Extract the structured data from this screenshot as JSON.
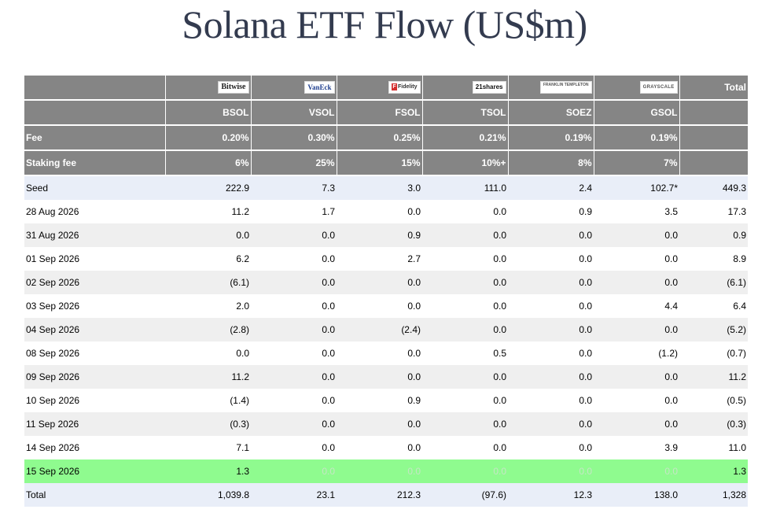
{
  "title": "Solana ETF Flow (US$m)",
  "logos": [
    {
      "icon": "bitwise-logo",
      "text": "Bitwise"
    },
    {
      "icon": "vaneck-logo",
      "text": "VanEck"
    },
    {
      "icon": "fidelity-logo",
      "text": "Fidelity"
    },
    {
      "icon": "21shares-logo",
      "text": "21shares"
    },
    {
      "icon": "franklin-templeton-logo",
      "text": "FRANKLIN TEMPLETON"
    },
    {
      "icon": "grayscale-logo",
      "text": "GRAYSCALE"
    }
  ],
  "header": {
    "total_label": "Total",
    "tickers": [
      "BSOL",
      "VSOL",
      "FSOL",
      "TSOL",
      "SOEZ",
      "GSOL"
    ],
    "fee": {
      "label": "Fee",
      "values": [
        "0.20%",
        "0.30%",
        "0.25%",
        "0.21%",
        "0.19%",
        "0.19%"
      ]
    },
    "staking_fee": {
      "label": "Staking fee",
      "values": [
        "6%",
        "25%",
        "15%",
        "10%+",
        "8%",
        "7%"
      ]
    }
  },
  "rows": [
    {
      "label": "Seed",
      "values": [
        "222.9",
        "7.3",
        "3.0",
        "111.0",
        "2.4",
        "102.7*"
      ],
      "total": "449.3"
    },
    {
      "label": "28 Aug 2026",
      "values": [
        "11.2",
        "1.7",
        "0.0",
        "0.0",
        "0.9",
        "3.5"
      ],
      "total": "17.3"
    },
    {
      "label": "31 Aug 2026",
      "values": [
        "0.0",
        "0.0",
        "0.9",
        "0.0",
        "0.0",
        "0.0"
      ],
      "total": "0.9"
    },
    {
      "label": "01 Sep 2026",
      "values": [
        "6.2",
        "0.0",
        "2.7",
        "0.0",
        "0.0",
        "0.0"
      ],
      "total": "8.9"
    },
    {
      "label": "02 Sep 2026",
      "values": [
        "(6.1)",
        "0.0",
        "0.0",
        "0.0",
        "0.0",
        "0.0"
      ],
      "total": "(6.1)"
    },
    {
      "label": "03 Sep 2026",
      "values": [
        "2.0",
        "0.0",
        "0.0",
        "0.0",
        "0.0",
        "4.4"
      ],
      "total": "6.4"
    },
    {
      "label": "04 Sep 2026",
      "values": [
        "(2.8)",
        "0.0",
        "(2.4)",
        "0.0",
        "0.0",
        "0.0"
      ],
      "total": "(5.2)"
    },
    {
      "label": "08 Sep 2026",
      "values": [
        "0.0",
        "0.0",
        "0.0",
        "0.5",
        "0.0",
        "(1.2)"
      ],
      "total": "(0.7)"
    },
    {
      "label": "09 Sep 2026",
      "values": [
        "11.2",
        "0.0",
        "0.0",
        "0.0",
        "0.0",
        "0.0"
      ],
      "total": "11.2"
    },
    {
      "label": "10 Sep 2026",
      "values": [
        "(1.4)",
        "0.0",
        "0.9",
        "0.0",
        "0.0",
        "0.0"
      ],
      "total": "(0.5)"
    },
    {
      "label": "11 Sep 2026",
      "values": [
        "(0.3)",
        "0.0",
        "0.0",
        "0.0",
        "0.0",
        "0.0"
      ],
      "total": "(0.3)"
    },
    {
      "label": "14 Sep 2026",
      "values": [
        "7.1",
        "0.0",
        "0.0",
        "0.0",
        "0.0",
        "3.9"
      ],
      "total": "11.0"
    },
    {
      "label": "15 Sep 2026",
      "values": [
        "1.3",
        "0.0",
        "0.0",
        "0.0",
        "0.0",
        "0.0"
      ],
      "total": "1.3"
    },
    {
      "label": "Total",
      "values": [
        "1,039.8",
        "23.1",
        "212.3",
        "(97.6)",
        "12.3",
        "138.0"
      ],
      "total": "1,328"
    }
  ],
  "colors": {
    "header_bg": "#858585",
    "seed_total_bg": "#e9eef8",
    "alt_row_bg": "#efefef",
    "highlight_row_bg": "#8ffb8f",
    "negative": "#e00000",
    "zero": "#c0c0c0"
  }
}
